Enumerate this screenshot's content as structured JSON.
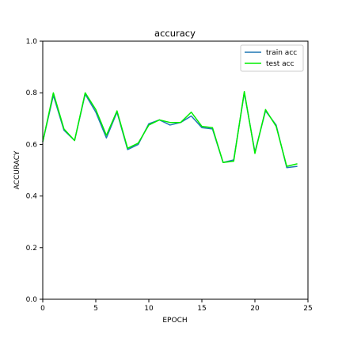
{
  "chart_data": {
    "type": "line",
    "title": "accuracy",
    "xlabel": "EPOCH",
    "ylabel": "ACCURACY",
    "xlim": [
      0,
      25
    ],
    "ylim": [
      0.0,
      1.0
    ],
    "xticks": [
      0,
      5,
      10,
      15,
      20,
      25
    ],
    "yticks": [
      0.0,
      0.2,
      0.4,
      0.6,
      0.8,
      1.0
    ],
    "xtick_labels": [
      "0",
      "5",
      "10",
      "15",
      "20",
      "25"
    ],
    "ytick_labels": [
      "0.0",
      "0.2",
      "0.4",
      "0.6",
      "0.8",
      "1.0"
    ],
    "grid": false,
    "legend_position": "top-right",
    "x": [
      0,
      1,
      2,
      3,
      4,
      5,
      6,
      7,
      8,
      9,
      10,
      11,
      12,
      13,
      14,
      15,
      16,
      17,
      18,
      19,
      20,
      21,
      22,
      23,
      24
    ],
    "series": [
      {
        "name": "train acc",
        "color": "#1f77b4",
        "values": [
          0.61,
          0.79,
          0.655,
          0.615,
          0.795,
          0.725,
          0.625,
          0.725,
          0.58,
          0.6,
          0.68,
          0.695,
          0.675,
          0.685,
          0.71,
          0.665,
          0.66,
          0.53,
          0.54,
          0.8,
          0.57,
          0.73,
          0.675,
          0.51,
          0.515
        ]
      },
      {
        "name": "test acc",
        "color": "#00ee00",
        "values": [
          0.61,
          0.8,
          0.66,
          0.615,
          0.8,
          0.735,
          0.635,
          0.73,
          0.585,
          0.605,
          0.675,
          0.695,
          0.685,
          0.685,
          0.725,
          0.67,
          0.665,
          0.53,
          0.535,
          0.805,
          0.565,
          0.735,
          0.67,
          0.515,
          0.525
        ]
      }
    ]
  }
}
